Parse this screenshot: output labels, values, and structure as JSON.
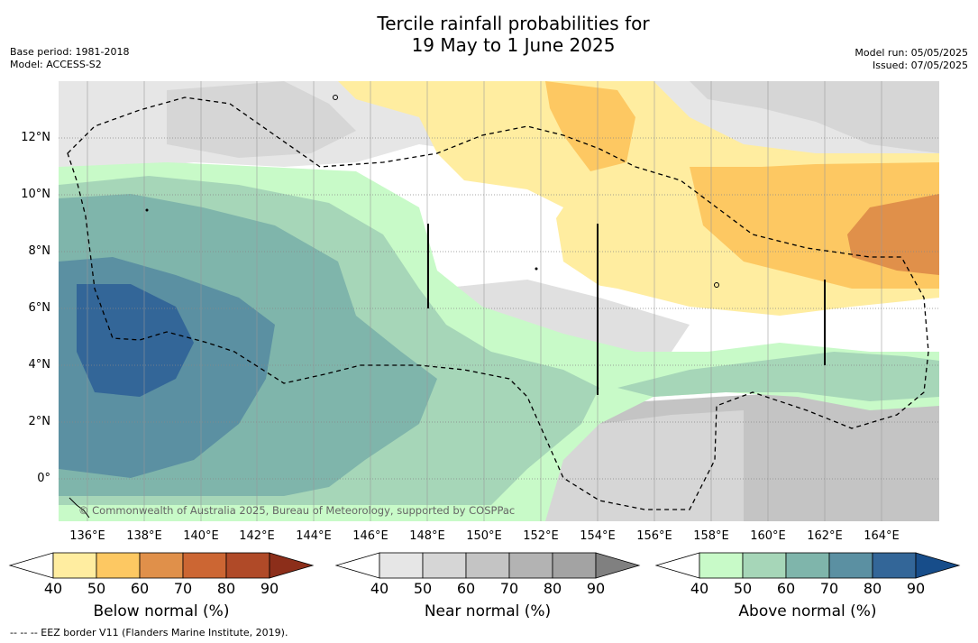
{
  "title_line1": "Tercile rainfall probabilities for",
  "title_line2": "19 May to 1 June 2025",
  "base_period": "Base period: 1981-2018",
  "model": "Model: ACCESS-S2",
  "model_run": "Model run: 05/05/2025",
  "issued": "Issued: 07/05/2025",
  "copyright": "© Commonwealth of Australia 2025, Bureau of Meteorology, supported by COSPPac",
  "footer_note": "--  --  -- EEZ border V11 (Flanders Marine Institute, 2019).",
  "lat_labels": [
    "12°N",
    "10°N",
    "8°N",
    "6°N",
    "4°N",
    "2°N",
    "0°"
  ],
  "lon_labels": [
    "136°E",
    "138°E",
    "140°E",
    "142°E",
    "144°E",
    "146°E",
    "148°E",
    "150°E",
    "152°E",
    "154°E",
    "156°E",
    "158°E",
    "160°E",
    "162°E",
    "164°E"
  ],
  "colorbars": {
    "below": {
      "title": "Below normal (%)",
      "ticks": [
        "40",
        "50",
        "60",
        "70",
        "80",
        "90"
      ],
      "colors": [
        "#ffffff",
        "#ffeda0",
        "#fdc862",
        "#e0904a",
        "#cc6633",
        "#b04a28",
        "#8c2e1a"
      ]
    },
    "near": {
      "title": "Near normal (%)",
      "ticks": [
        "40",
        "50",
        "60",
        "70",
        "80",
        "90"
      ],
      "colors": [
        "#ffffff",
        "#e6e6e6",
        "#d6d6d6",
        "#c4c4c4",
        "#b3b3b3",
        "#a3a3a3",
        "#808080"
      ]
    },
    "above": {
      "title": "Above normal (%)",
      "ticks": [
        "40",
        "50",
        "60",
        "70",
        "80",
        "90"
      ],
      "colors": [
        "#ffffff",
        "#c8fac8",
        "#a6d6b8",
        "#7fb5ab",
        "#5b90a2",
        "#336698",
        "#174d8a"
      ]
    }
  }
}
